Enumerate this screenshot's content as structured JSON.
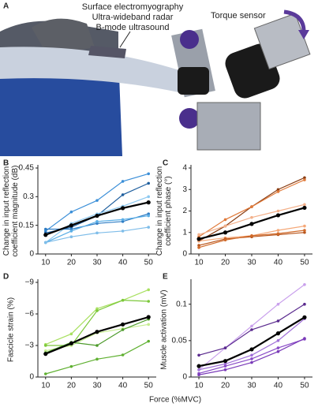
{
  "illustration": {
    "panel": "A",
    "labels": [
      "Surface electromyography",
      "Ultra-wideband radar",
      "B-mode ultrasound"
    ],
    "torque_label": "Torque sensor"
  },
  "x_label": "Force (%MVC)",
  "chart_data": [
    {
      "type": "line",
      "panel": "B",
      "ylabel": [
        "Change in input reflection",
        "coefficient magnitude (dB)"
      ],
      "x": [
        10,
        20,
        30,
        40,
        50
      ],
      "xlim": [
        7,
        53
      ],
      "xticks": [
        10,
        20,
        30,
        40,
        50
      ],
      "ylim": [
        0,
        0.45
      ],
      "yticks": [
        0,
        0.15,
        0.3,
        0.45
      ],
      "series": [
        {
          "color": "#3b8fd8",
          "values": [
            0.12,
            0.22,
            0.28,
            0.38,
            0.42
          ]
        },
        {
          "color": "#1f5f9e",
          "values": [
            0.11,
            0.14,
            0.2,
            0.31,
            0.37
          ]
        },
        {
          "color": "#8cc8f0",
          "values": [
            0.06,
            0.16,
            0.21,
            0.25,
            0.3
          ]
        },
        {
          "color": "#2e7cc4",
          "values": [
            0.13,
            0.13,
            0.16,
            0.17,
            0.21
          ]
        },
        {
          "color": "#5aaee6",
          "values": [
            0.06,
            0.12,
            0.17,
            0.18,
            0.2
          ]
        },
        {
          "color": "#7fbde9",
          "values": [
            0.06,
            0.09,
            0.11,
            0.12,
            0.14
          ]
        },
        {
          "color": "#000000",
          "width": 2.2,
          "values": [
            0.1,
            0.15,
            0.2,
            0.24,
            0.27
          ]
        }
      ]
    },
    {
      "type": "line",
      "panel": "C",
      "ylabel": [
        "Change in input reflection",
        "coefficient phase (°)"
      ],
      "x": [
        10,
        20,
        30,
        40,
        50
      ],
      "xlim": [
        7,
        53
      ],
      "xticks": [
        10,
        20,
        30,
        40,
        50
      ],
      "ylim": [
        0,
        4
      ],
      "yticks": [
        0,
        1,
        2,
        3,
        4
      ],
      "series": [
        {
          "color": "#8a3d12",
          "values": [
            0.6,
            1.3,
            2.2,
            3.0,
            3.55
          ]
        },
        {
          "color": "#e07a3a",
          "values": [
            0.8,
            1.6,
            2.2,
            2.9,
            3.45
          ]
        },
        {
          "color": "#f3b08a",
          "values": [
            0.9,
            1.3,
            1.7,
            2.0,
            2.3
          ]
        },
        {
          "color": "#f5a878",
          "values": [
            0.6,
            0.75,
            0.85,
            1.1,
            1.3
          ]
        },
        {
          "color": "#b8561d",
          "values": [
            0.4,
            0.7,
            0.8,
            0.9,
            1.0
          ]
        },
        {
          "color": "#d06a2a",
          "values": [
            0.3,
            0.65,
            0.85,
            0.95,
            1.1
          ]
        },
        {
          "color": "#000000",
          "width": 2.2,
          "values": [
            0.7,
            1.0,
            1.4,
            1.8,
            2.15
          ]
        }
      ]
    },
    {
      "type": "line",
      "panel": "D",
      "ylabel": [
        "Fascicle strain (%)"
      ],
      "x": [
        10,
        20,
        30,
        40,
        50
      ],
      "xlim": [
        7,
        53
      ],
      "xticks": [
        10,
        20,
        30,
        40,
        50
      ],
      "ylim": [
        0,
        -9
      ],
      "yticks": [
        {
          "value": -9,
          "label": "−9"
        },
        {
          "value": -6,
          "label": "−6"
        },
        {
          "value": -3,
          "label": "−3"
        },
        0
      ],
      "series": [
        {
          "color": "#a8e060",
          "values": [
            -3.1,
            -4.1,
            -6.5,
            -7.3,
            -8.3
          ]
        },
        {
          "color": "#7cc83a",
          "values": [
            -3.0,
            -3.0,
            -6.3,
            -7.3,
            -7.2
          ]
        },
        {
          "color": "#c5ec90",
          "values": [
            -2.5,
            -3.0,
            -4.2,
            -4.6,
            -5.0
          ]
        },
        {
          "color": "#4c9a2a",
          "values": [
            -2.3,
            -3.3,
            -3.0,
            -4.5,
            -5.5
          ]
        },
        {
          "color": "#5fb030",
          "values": [
            -0.3,
            -1.0,
            -1.7,
            -2.1,
            -3.4
          ]
        },
        {
          "color": "#000000",
          "width": 2.2,
          "values": [
            -2.2,
            -3.2,
            -4.3,
            -5.0,
            -5.7
          ]
        }
      ]
    },
    {
      "type": "line",
      "panel": "E",
      "ylabel": [
        "Muscle activation (mV)"
      ],
      "x": [
        10,
        20,
        30,
        40,
        50
      ],
      "xlim": [
        7,
        53
      ],
      "xticks": [
        10,
        20,
        30,
        40,
        50
      ],
      "ylim": [
        0,
        0.13
      ],
      "yticks": [
        0,
        0.05,
        0.1
      ],
      "series": [
        {
          "color": "#c9a0ec",
          "values": [
            0.01,
            0.04,
            0.07,
            0.1,
            0.127
          ]
        },
        {
          "color": "#5a2a8e",
          "values": [
            0.03,
            0.04,
            0.065,
            0.077,
            0.1
          ]
        },
        {
          "color": "#a070d8",
          "values": [
            0.01,
            0.018,
            0.03,
            0.05,
            0.08
          ]
        },
        {
          "color": "#8a4cc8",
          "values": [
            0.005,
            0.015,
            0.025,
            0.04,
            0.052
          ]
        },
        {
          "color": "#7a3ab8",
          "values": [
            0.003,
            0.01,
            0.02,
            0.035,
            0.053
          ]
        },
        {
          "color": "#000000",
          "width": 2.2,
          "values": [
            0.015,
            0.022,
            0.038,
            0.06,
            0.082
          ]
        }
      ]
    }
  ]
}
